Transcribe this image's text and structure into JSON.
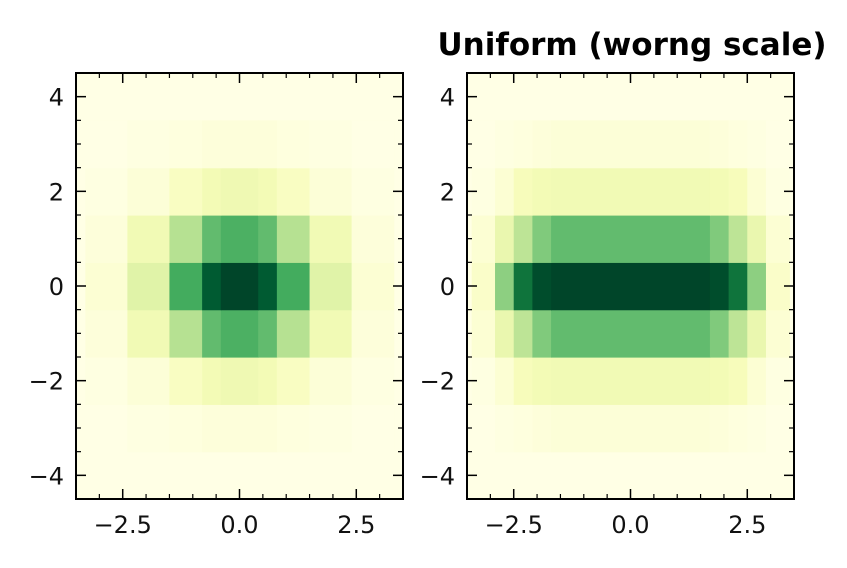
{
  "chart_data": [
    {
      "type": "heatmap",
      "title": "",
      "xlabel": "",
      "ylabel": "",
      "xlim": [
        -3.5,
        3.5
      ],
      "ylim": [
        -4.5,
        4.5
      ],
      "x_ticks": [
        -2.5,
        0.0,
        2.5
      ],
      "x_tick_labels": [
        "−2.5",
        "0.0",
        "2.5"
      ],
      "y_ticks": [
        -4,
        -2,
        0,
        2,
        4
      ],
      "y_tick_labels": [
        "−4",
        "−2",
        "0",
        "2",
        "4"
      ],
      "colormap": "YlGn",
      "color_low": "#ffffe5",
      "color_high": "#004529",
      "x_edges": [
        -3.3,
        -2.4,
        -1.5,
        -0.8,
        -0.4,
        0.4,
        0.8,
        1.5,
        2.4,
        3.3
      ],
      "y_edges": [
        -3.5,
        -2.5,
        -1.5,
        -0.5,
        0.5,
        1.5,
        2.5,
        3.5
      ],
      "z": [
        [
          0.0,
          0.01,
          0.02,
          0.03,
          0.03,
          0.03,
          0.02,
          0.01,
          0.0
        ],
        [
          0.01,
          0.04,
          0.1,
          0.14,
          0.16,
          0.14,
          0.1,
          0.04,
          0.01
        ],
        [
          0.03,
          0.15,
          0.35,
          0.55,
          0.6,
          0.55,
          0.35,
          0.15,
          0.03
        ],
        [
          0.05,
          0.22,
          0.62,
          0.92,
          1.0,
          0.92,
          0.62,
          0.22,
          0.05
        ],
        [
          0.03,
          0.15,
          0.35,
          0.55,
          0.6,
          0.55,
          0.35,
          0.15,
          0.03
        ],
        [
          0.01,
          0.04,
          0.1,
          0.14,
          0.16,
          0.14,
          0.1,
          0.04,
          0.01
        ],
        [
          0.0,
          0.01,
          0.02,
          0.03,
          0.03,
          0.03,
          0.02,
          0.01,
          0.0
        ]
      ]
    },
    {
      "type": "heatmap",
      "title": "Uniform (worng scale)",
      "xlabel": "",
      "ylabel": "",
      "xlim": [
        -3.5,
        3.5
      ],
      "ylim": [
        -4.5,
        4.5
      ],
      "x_ticks": [
        -2.5,
        0.0,
        2.5
      ],
      "x_tick_labels": [
        "−2.5",
        "0.0",
        "2.5"
      ],
      "y_ticks": [
        -4,
        -2,
        0,
        2,
        4
      ],
      "y_tick_labels": [
        "−4",
        "−2",
        "0",
        "2",
        "4"
      ],
      "colormap": "YlGn",
      "color_low": "#ffffe5",
      "color_high": "#004529",
      "x_edges": [
        -3.4,
        -2.9,
        -2.5,
        -2.1,
        -1.7,
        1.7,
        2.1,
        2.5,
        2.9,
        3.4
      ],
      "y_edges": [
        -3.5,
        -2.5,
        -1.5,
        -0.5,
        0.5,
        1.5,
        2.5,
        3.5
      ],
      "z": [
        [
          0.0,
          0.01,
          0.02,
          0.03,
          0.04,
          0.03,
          0.02,
          0.01,
          0.0
        ],
        [
          0.01,
          0.05,
          0.12,
          0.14,
          0.15,
          0.14,
          0.12,
          0.05,
          0.01
        ],
        [
          0.05,
          0.18,
          0.33,
          0.48,
          0.55,
          0.48,
          0.33,
          0.18,
          0.05
        ],
        [
          0.08,
          0.45,
          0.82,
          0.97,
          1.0,
          0.97,
          0.82,
          0.45,
          0.08
        ],
        [
          0.05,
          0.18,
          0.33,
          0.48,
          0.55,
          0.48,
          0.33,
          0.18,
          0.05
        ],
        [
          0.01,
          0.05,
          0.12,
          0.14,
          0.15,
          0.14,
          0.12,
          0.05,
          0.01
        ],
        [
          0.0,
          0.01,
          0.02,
          0.03,
          0.04,
          0.03,
          0.02,
          0.01,
          0.0
        ]
      ]
    }
  ]
}
